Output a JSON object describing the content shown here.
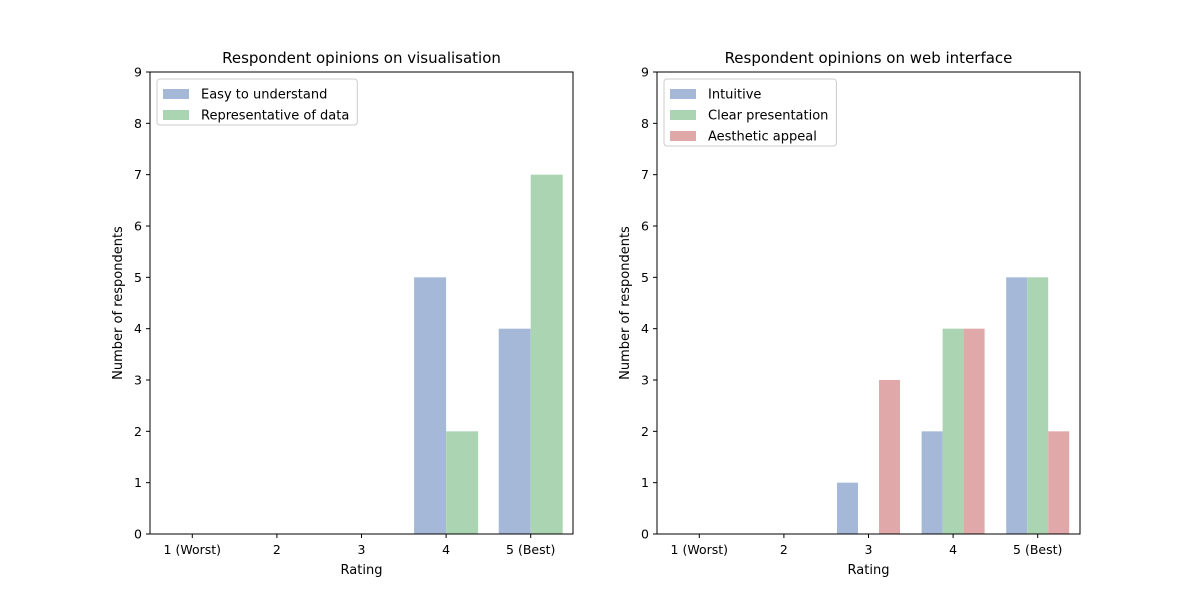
{
  "chart_data": [
    {
      "type": "bar",
      "title": "Respondent opinions on visualisation",
      "xlabel": "Rating",
      "ylabel": "Number of respondents",
      "categories": [
        "1 (Worst)",
        "2",
        "3",
        "4",
        "5 (Best)"
      ],
      "ylim": [
        0,
        9
      ],
      "yticks": [
        "0",
        "1",
        "2",
        "3",
        "4",
        "5",
        "6",
        "7",
        "8",
        "9"
      ],
      "grid": false,
      "legend_position": "upper-left",
      "series": [
        {
          "name": "Easy to understand",
          "values": [
            0,
            0,
            0,
            5,
            4
          ],
          "color": "#a5b8d8"
        },
        {
          "name": "Representative of data",
          "values": [
            0,
            0,
            0,
            2,
            7
          ],
          "color": "#abd4b3"
        }
      ]
    },
    {
      "type": "bar",
      "title": "Respondent opinions on web interface",
      "xlabel": "Rating",
      "ylabel": "Number of respondents",
      "categories": [
        "1 (Worst)",
        "2",
        "3",
        "4",
        "5 (Best)"
      ],
      "ylim": [
        0,
        9
      ],
      "yticks": [
        "0",
        "1",
        "2",
        "3",
        "4",
        "5",
        "6",
        "7",
        "8",
        "9"
      ],
      "grid": false,
      "legend_position": "upper-left",
      "series": [
        {
          "name": "Intuitive",
          "values": [
            0,
            0,
            1,
            2,
            5
          ],
          "color": "#a5b8d8"
        },
        {
          "name": "Clear presentation",
          "values": [
            0,
            0,
            0,
            4,
            5
          ],
          "color": "#abd4b3"
        },
        {
          "name": "Aesthetic appeal",
          "values": [
            0,
            0,
            3,
            4,
            2
          ],
          "color": "#e1a8a9"
        }
      ]
    }
  ]
}
